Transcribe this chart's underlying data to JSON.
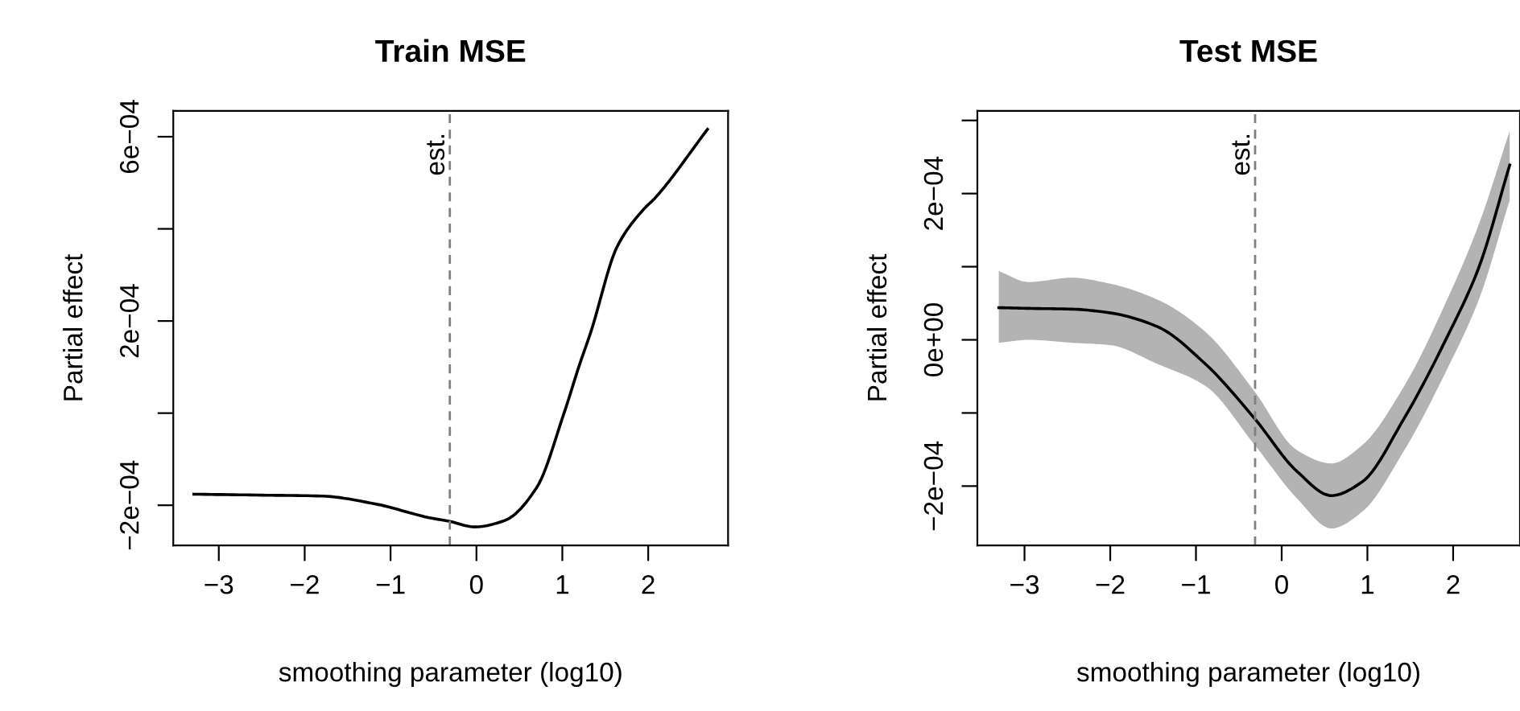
{
  "chart_data": [
    {
      "type": "line",
      "title": "Train MSE",
      "xlabel": "smoothing parameter (log10)",
      "ylabel": "Partial effect",
      "x": [
        -3.29,
        -2.5,
        -1.8,
        -1.18,
        -0.55,
        -0.31,
        -0.02,
        0.33,
        0.7,
        1.02,
        1.2,
        1.33,
        1.64,
        1.95,
        2.08,
        2.69
      ],
      "series": [
        {
          "color": "#000000",
          "values": [
            -0.000176,
            -0.000178,
            -0.00018,
            -0.000197,
            -0.000227,
            -0.000235,
            -0.000247,
            -0.000233,
            -0.000162,
            0.0,
            0.000105,
            0.000175,
            0.000362,
            0.000443,
            0.000467,
            0.000616
          ]
        }
      ],
      "xlim": [
        -3.53,
        2.93
      ],
      "xticks": [
        {
          "value": -3,
          "label": "−3"
        },
        {
          "value": -2,
          "label": "−2"
        },
        {
          "value": -1,
          "label": "−1"
        },
        0,
        1,
        2
      ],
      "ylim": [
        -0.000287,
        0.000656
      ],
      "yticks": [
        {
          "value": -0.0002,
          "label": "−2e−04"
        },
        {
          "value": 0.0,
          "label": null
        },
        {
          "value": 0.0002,
          "label": "2e−04"
        },
        {
          "value": 0.0004,
          "label": null
        },
        {
          "value": 0.0006,
          "label": "6e−04"
        }
      ],
      "ref_lines": [
        {
          "axis": "x",
          "value": -0.31,
          "label": "est.",
          "color": "#808080",
          "line_style": "dashed"
        }
      ]
    },
    {
      "type": "line",
      "title": "Test MSE",
      "xlabel": "smoothing parameter (log10)",
      "ylabel": "Partial effect",
      "x": [
        -3.3,
        -2.95,
        -2.45,
        -2.01,
        -1.45,
        -0.89,
        -0.32,
        0.18,
        0.58,
        0.93,
        1.43,
        1.93,
        2.3,
        2.66
      ],
      "series": [
        {
          "color": "#000000",
          "values": [
            4.4e-05,
            4.3e-05,
            4.2e-05,
            3.7e-05,
            1.8e-05,
            -3.3e-05,
            -0.000107,
            -0.00018,
            -0.000213,
            -0.000195,
            -0.000107,
            4e-06,
            9.9e-05,
            0.000239
          ],
          "lower": [
            -4e-06,
            0.0,
            -4e-06,
            -7e-06,
            -3.3e-05,
            -6.3e-05,
            -0.000143,
            -0.000217,
            -0.000258,
            -0.000236,
            -0.000151,
            -4e-05,
            5.5e-05,
            0.000191
          ],
          "upper": [
            9.4e-05,
            7.9e-05,
            8.5e-05,
            7.7e-05,
            5.5e-05,
            1.1e-05,
            -7e-05,
            -0.000151,
            -0.000169,
            -0.000145,
            -6.3e-05,
            5.5e-05,
            0.000158,
            0.000286
          ]
        }
      ],
      "xlim": [
        -3.55,
        2.78
      ],
      "xticks": [
        {
          "value": -3,
          "label": "−3"
        },
        {
          "value": -2,
          "label": "−2"
        },
        {
          "value": -1,
          "label": "−1"
        },
        0,
        1,
        2
      ],
      "ylim": [
        -0.000281,
        0.000313
      ],
      "yticks": [
        {
          "value": -0.0002,
          "label": "−2e−04"
        },
        {
          "value": -0.0001,
          "label": null
        },
        {
          "value": 0.0,
          "label": "0e+00"
        },
        {
          "value": 0.0001,
          "label": null
        },
        {
          "value": 0.0002,
          "label": "2e−04"
        },
        {
          "value": 0.0003,
          "label": null
        }
      ],
      "ref_lines": [
        {
          "axis": "x",
          "value": -0.31,
          "label": "est.",
          "color": "#808080",
          "line_style": "dashed"
        }
      ]
    }
  ]
}
